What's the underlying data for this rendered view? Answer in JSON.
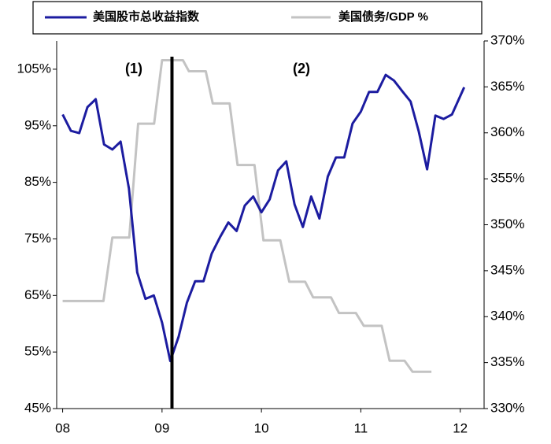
{
  "chart_data": {
    "type": "line",
    "annotations": [
      "(1)",
      "(2)"
    ],
    "vline_x": 2009.1,
    "xlim": [
      2007.94,
      2012.24
    ],
    "xticks": [
      {
        "value": 2008,
        "label": "08"
      },
      {
        "value": 2009,
        "label": "09"
      },
      {
        "value": 2010,
        "label": "10"
      },
      {
        "value": 2011,
        "label": "11"
      },
      {
        "value": 2012,
        "label": "12"
      }
    ],
    "ylim": [
      45,
      110
    ],
    "yticks": [
      {
        "value": 45,
        "label": "45%"
      },
      {
        "value": 55,
        "label": "55%"
      },
      {
        "value": 65,
        "label": "65%"
      },
      {
        "value": 75,
        "label": "75%"
      },
      {
        "value": 85,
        "label": "85%"
      },
      {
        "value": 95,
        "label": "95%"
      },
      {
        "value": 105,
        "label": "105%"
      }
    ],
    "y2lim": [
      330,
      370
    ],
    "y2ticks": [
      {
        "value": 330,
        "label": "330%"
      },
      {
        "value": 335,
        "label": "335%"
      },
      {
        "value": 340,
        "label": "340%"
      },
      {
        "value": 345,
        "label": "345%"
      },
      {
        "value": 350,
        "label": "350%"
      },
      {
        "value": 355,
        "label": "355%"
      },
      {
        "value": 360,
        "label": "360%"
      },
      {
        "value": 365,
        "label": "365%"
      },
      {
        "value": 370,
        "label": "370%"
      }
    ],
    "series": [
      {
        "name": "美国股市总收益指数",
        "color": "#1c1ca0",
        "x": [
          2008.0,
          2008.083,
          2008.167,
          2008.25,
          2008.333,
          2008.417,
          2008.5,
          2008.583,
          2008.667,
          2008.75,
          2008.833,
          2008.917,
          2009.0,
          2009.083,
          2009.167,
          2009.25,
          2009.333,
          2009.417,
          2009.5,
          2009.583,
          2009.667,
          2009.75,
          2009.833,
          2009.917,
          2010.0,
          2010.083,
          2010.167,
          2010.25,
          2010.333,
          2010.417,
          2010.5,
          2010.583,
          2010.667,
          2010.75,
          2010.833,
          2010.917,
          2011.0,
          2011.083,
          2011.167,
          2011.25,
          2011.333,
          2011.417,
          2011.5,
          2011.583,
          2011.667,
          2011.75,
          2011.833,
          2011.917,
          2012.04
        ],
        "values": [
          97.0,
          94.1,
          93.7,
          98.3,
          99.7,
          91.7,
          90.8,
          92.2,
          83.9,
          69.1,
          64.4,
          65.0,
          60.2,
          53.4,
          57.7,
          63.7,
          67.5,
          67.5,
          72.4,
          75.3,
          77.9,
          76.4,
          80.9,
          82.5,
          79.7,
          82.0,
          87.1,
          88.7,
          81.1,
          77.1,
          82.5,
          78.6,
          86.0,
          89.4,
          89.4,
          95.4,
          97.5,
          101.0,
          101.0,
          104.0,
          103.0,
          101.1,
          99.3,
          94.0,
          87.3,
          96.8,
          96.2,
          97.0,
          101.8
        ]
      },
      {
        "name": "美国债务/GDP %",
        "color": "#c3c3c3",
        "axis": "y2",
        "x": [
          2008.0,
          2008.41,
          2008.5,
          2008.67,
          2008.76,
          2008.92,
          2009.0,
          2009.21,
          2009.27,
          2009.44,
          2009.51,
          2009.68,
          2009.76,
          2009.93,
          2010.02,
          2010.19,
          2010.28,
          2010.44,
          2010.52,
          2010.7,
          2010.78,
          2010.95,
          2011.03,
          2011.21,
          2011.29,
          2011.44,
          2011.52,
          2011.71
        ],
        "values": [
          341.7,
          341.7,
          348.6,
          348.6,
          361.0,
          361.0,
          367.9,
          367.9,
          366.7,
          366.7,
          363.2,
          363.2,
          356.5,
          356.5,
          348.3,
          348.3,
          343.8,
          343.8,
          342.1,
          342.1,
          340.4,
          340.4,
          339.0,
          339.0,
          335.2,
          335.2,
          334.0,
          334.0
        ]
      }
    ]
  }
}
